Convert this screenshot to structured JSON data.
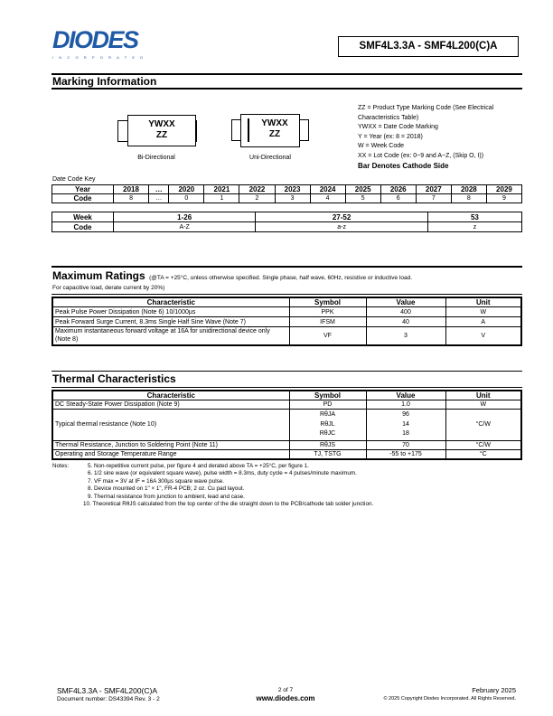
{
  "header": {
    "logo_text": "DIODES",
    "logo_subtext": "INCORPORATED",
    "title": "SMF4L3.3A - SMF4L200(C)A",
    "brand_color": "#1f5aa6"
  },
  "marking": {
    "heading": "Marking Information",
    "bi": {
      "line1": "YWXX",
      "line2": "ZZ",
      "caption": "Bi-Directional"
    },
    "uni": {
      "line1": "YWXX",
      "line2": "ZZ",
      "caption": "Uni-Directional"
    },
    "legend": [
      "ZZ = Product Type Marking Code (See Electrical",
      "Characteristics Table)",
      "YWXX = Date Code Marking",
      "Y = Year (ex: 8 = 2018)",
      "W = Week Code",
      "XX = Lot Code (ex: 0~9 and A~Z, (Skip O, I))"
    ],
    "legend_bold": "Bar Denotes Cathode Side",
    "date_code_key": "Date Code Key",
    "year_table": {
      "row_labels": [
        "Year",
        "Code"
      ],
      "years": [
        "2018",
        "…",
        "2020",
        "2021",
        "2022",
        "2023",
        "2024",
        "2025",
        "2026",
        "2027",
        "2028",
        "2029"
      ],
      "codes": [
        "8",
        "…",
        "0",
        "1",
        "2",
        "3",
        "4",
        "5",
        "6",
        "7",
        "8",
        "9"
      ]
    },
    "week_table": {
      "row_labels": [
        "Week",
        "Code"
      ],
      "weeks": [
        "1-26",
        "27-52",
        "53"
      ],
      "codes": [
        "A-Z",
        "a-z",
        "z"
      ]
    }
  },
  "max_ratings": {
    "heading": "Maximum Ratings",
    "condition": "(@TA = +25°C, unless otherwise specified.  Single phase, half wave, 60Hz, resistive or inductive load.",
    "condition2": "For capacitive load, derate current by 20%)",
    "columns": [
      "Characteristic",
      "Symbol",
      "Value",
      "Unit"
    ],
    "rows": [
      {
        "characteristic": "Peak Pulse Power Dissipation (Note 6) 10/1000µs",
        "symbol": "PPK",
        "value": "400",
        "unit": "W"
      },
      {
        "characteristic": "Peak Forward Surge Current, 8.3ms Single Half Sine Wave (Note 7)",
        "symbol": "IFSM",
        "value": "40",
        "unit": "A"
      },
      {
        "characteristic": "Maximum instantaneous forward voltage at 16A for unidirectional device only (Note 8)",
        "symbol": "VF",
        "value": "3",
        "unit": "V"
      }
    ]
  },
  "thermal": {
    "heading": "Thermal Characteristics",
    "columns": [
      "Characteristic",
      "Symbol",
      "Value",
      "Unit"
    ],
    "rows": [
      {
        "characteristic": "DC Steady-State Power Dissipation (Note 9)",
        "symbol": "PD",
        "value": "1.0",
        "unit": "W"
      },
      {
        "characteristic": "Typical thermal resistance (Note 10)",
        "symbols": [
          "RθJA",
          "RθJL",
          "RθJC"
        ],
        "values": [
          "96",
          "14",
          "18"
        ],
        "unit": "°C/W"
      },
      {
        "characteristic": "Thermal Resistance, Junction to Soldering Point (Note 11)",
        "symbol": "RθJS",
        "value": "70",
        "unit": "°C/W"
      },
      {
        "characteristic": "Operating and Storage Temperature Range",
        "symbol": "TJ, TSTG",
        "value": "-55 to +175",
        "unit": "°C"
      }
    ]
  },
  "notes": {
    "label": "Notes:",
    "items": [
      "5. Non-repetitive current pulse, per figure 4 and derated above TA = +25°C, per figure 1.",
      "6. 1/2 sine wave (or equivalent square wave), pulse width = 8.3ms, duty cycle = 4 pulses/minute maximum.",
      "7. VF max = 3V at IF = 16A 300µs square wave pulse.",
      "8. Device mounted on 1\" × 1\", FR-4 PCB; 2 oz. Cu pad layout.",
      "9. Thermal resistance from junction to ambient, lead and case.",
      "10. Theoretical RθJS calculated from the top center of the die straight down to the PCB/cathode tab solder junction."
    ]
  },
  "footer": {
    "part": "SMF4L3.3A - SMF4L200(C)A",
    "doc": "Document number: DS43394 Rev. 3 - 2",
    "page": "2 of 7",
    "url": "www.diodes.com",
    "date": "February 2025",
    "copyright": "© 2025 Copyright Diodes Incorporated. All Rights Reserved."
  }
}
